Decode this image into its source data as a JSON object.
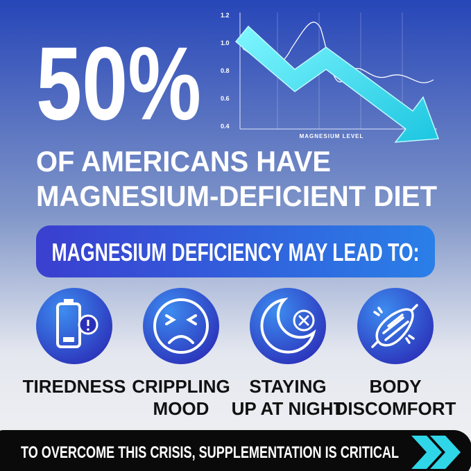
{
  "headline": "50%",
  "subheadline": [
    "OF AMERICANS HAVE",
    "MAGNESIUM-DEFICIENT DIET"
  ],
  "graph": {
    "yticks": [
      "1.2",
      "1.0",
      "0.8",
      "0.6",
      "0.4"
    ],
    "x_label": "MAGNESIUM LEVEL"
  },
  "banner": "MAGNESIUM DEFICIENCY MAY LEAD TO:",
  "items": [
    {
      "label": [
        "TIREDNESS"
      ]
    },
    {
      "label": [
        "CRIPPLING",
        "MOOD"
      ]
    },
    {
      "label": [
        "STAYING",
        "UP AT NIGHT"
      ]
    },
    {
      "label": [
        "BODY",
        "DISCOMFORT"
      ]
    }
  ],
  "footer": "TO OVERCOME THIS CRISIS, SUPPLEMENTATION IS CRITICAL"
}
